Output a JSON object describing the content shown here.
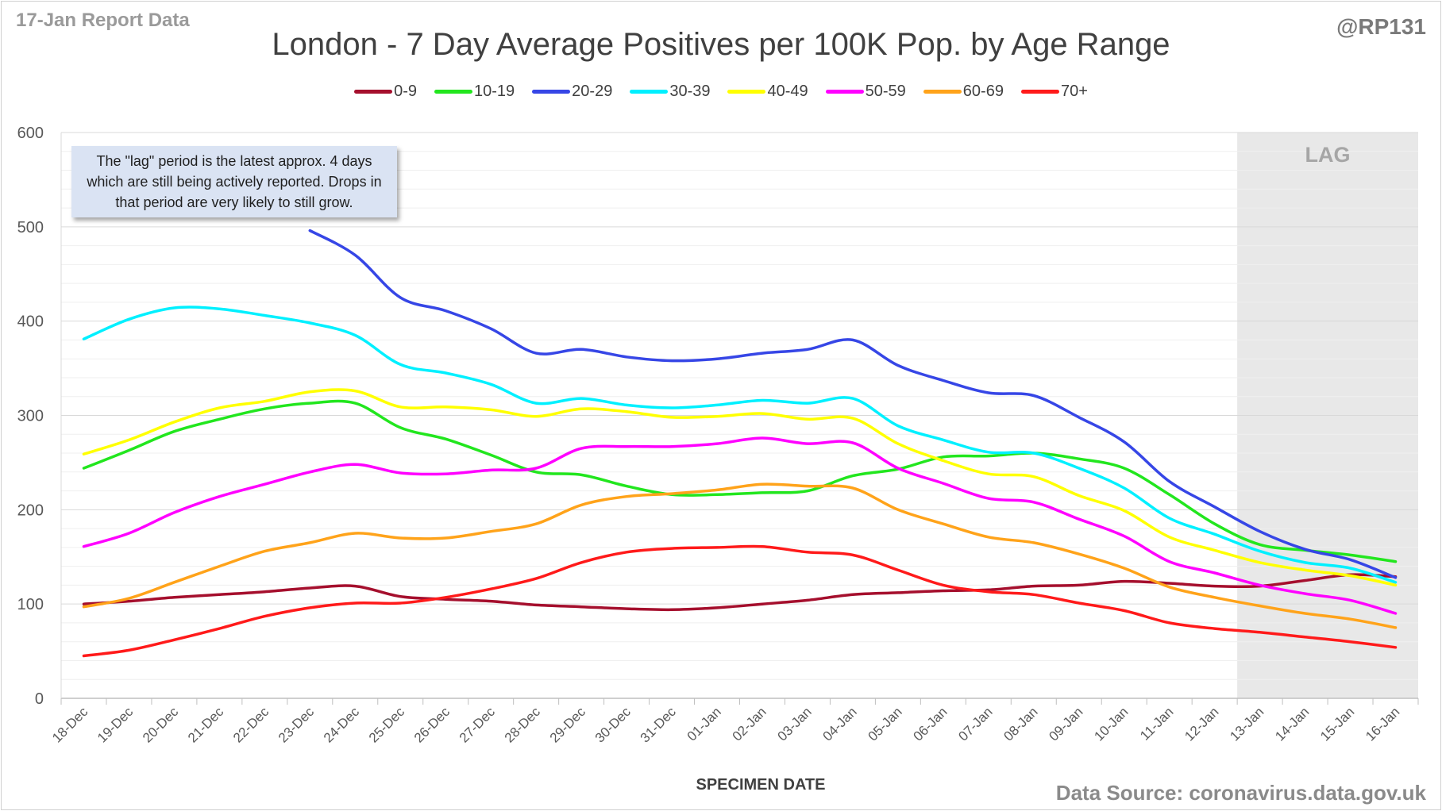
{
  "header": {
    "report_label": "17-Jan Report Data",
    "handle": "@RP131",
    "source": "Data Source: coronavirus.data.gov.uk"
  },
  "note_text": "The \"lag\" period is the latest approx. 4 days which are still being actively reported.  Drops in that period are very likely to still grow.",
  "lag_label": "LAG",
  "chart_data": {
    "type": "line",
    "title": "London - 7 Day Average Positives per 100K Pop. by Age Range",
    "xlabel": "SPECIMEN DATE",
    "ylabel": "",
    "ylim": [
      0,
      600
    ],
    "yticks": [
      0,
      100,
      200,
      300,
      400,
      500,
      600
    ],
    "grid": "horizontal",
    "legend_position": "top",
    "lag_region": {
      "start": "13-Jan",
      "end": "16-Jan"
    },
    "categories": [
      "18-Dec",
      "19-Dec",
      "20-Dec",
      "21-Dec",
      "22-Dec",
      "23-Dec",
      "24-Dec",
      "25-Dec",
      "26-Dec",
      "27-Dec",
      "28-Dec",
      "29-Dec",
      "30-Dec",
      "31-Dec",
      "01-Jan",
      "02-Jan",
      "03-Jan",
      "04-Jan",
      "05-Jan",
      "06-Jan",
      "07-Jan",
      "08-Jan",
      "09-Jan",
      "10-Jan",
      "11-Jan",
      "12-Jan",
      "13-Jan",
      "14-Jan",
      "15-Jan",
      "16-Jan"
    ],
    "series": [
      {
        "name": "0-9",
        "color": "#a50f2d",
        "values": [
          100,
          103,
          107,
          110,
          113,
          117,
          119,
          108,
          105,
          103,
          99,
          97,
          95,
          94,
          96,
          100,
          104,
          110,
          112,
          114,
          115,
          119,
          120,
          124,
          122,
          119,
          119,
          125,
          131,
          129
        ]
      },
      {
        "name": "10-19",
        "color": "#22e61e",
        "values": [
          244,
          263,
          283,
          296,
          307,
          313,
          313,
          287,
          275,
          258,
          240,
          237,
          225,
          216,
          216,
          218,
          220,
          236,
          243,
          256,
          257,
          260,
          254,
          244,
          216,
          185,
          163,
          157,
          152,
          145
        ]
      },
      {
        "name": "20-29",
        "color": "#3646e6",
        "values": [
          null,
          null,
          null,
          null,
          null,
          496,
          470,
          425,
          411,
          392,
          366,
          370,
          362,
          358,
          360,
          366,
          370,
          380,
          353,
          337,
          324,
          321,
          298,
          272,
          230,
          203,
          177,
          158,
          147,
          128
        ]
      },
      {
        "name": "30-39",
        "color": "#00f0ff",
        "values": [
          381,
          402,
          414,
          413,
          406,
          398,
          385,
          354,
          345,
          333,
          313,
          318,
          311,
          308,
          311,
          316,
          313,
          318,
          289,
          274,
          261,
          260,
          244,
          223,
          191,
          174,
          156,
          144,
          138,
          123
        ]
      },
      {
        "name": "40-49",
        "color": "#ffff00",
        "values": [
          259,
          274,
          293,
          308,
          315,
          325,
          326,
          309,
          309,
          306,
          299,
          307,
          304,
          298,
          299,
          302,
          296,
          297,
          270,
          252,
          238,
          235,
          215,
          199,
          171,
          157,
          144,
          136,
          130,
          120
        ]
      },
      {
        "name": "50-59",
        "color": "#ff00ff",
        "values": [
          161,
          175,
          197,
          214,
          227,
          240,
          248,
          239,
          238,
          242,
          244,
          265,
          267,
          267,
          270,
          276,
          270,
          271,
          244,
          228,
          212,
          208,
          190,
          172,
          145,
          133,
          120,
          111,
          104,
          90
        ]
      },
      {
        "name": "60-69",
        "color": "#ffa31a",
        "values": [
          97,
          106,
          123,
          140,
          156,
          165,
          175,
          170,
          170,
          177,
          185,
          205,
          214,
          217,
          221,
          227,
          225,
          223,
          200,
          185,
          171,
          165,
          153,
          138,
          118,
          107,
          98,
          90,
          84,
          75
        ]
      },
      {
        "name": "70+",
        "color": "#ff1a1a",
        "values": [
          45,
          51,
          62,
          74,
          87,
          96,
          101,
          101,
          107,
          116,
          127,
          144,
          155,
          159,
          160,
          161,
          155,
          152,
          136,
          120,
          113,
          110,
          101,
          93,
          80,
          74,
          70,
          65,
          60,
          54
        ]
      }
    ]
  }
}
